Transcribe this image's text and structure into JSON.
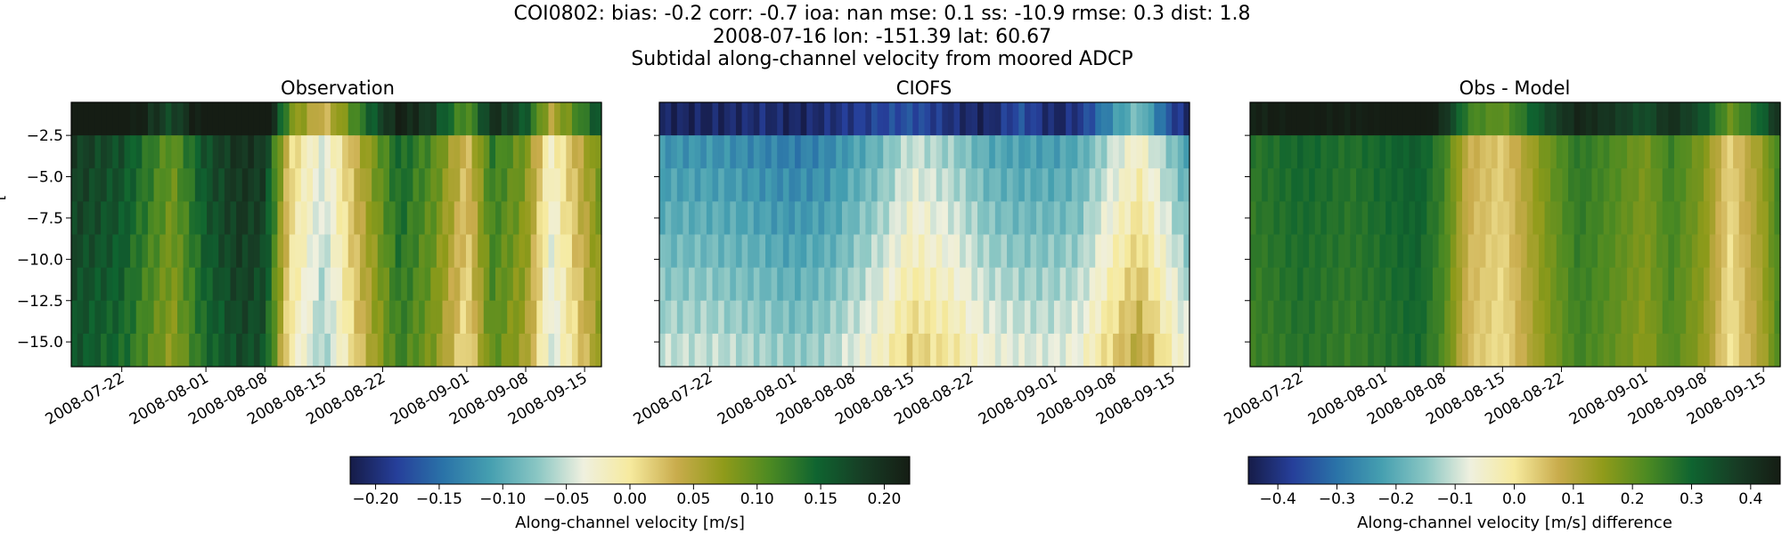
{
  "figure": {
    "title_lines": [
      "COI0802: bias: -0.2  corr: -0.7  ioa: nan  mse: 0.1  ss: -10.9  rmse: 0.3  dist: 1.8",
      "2008-07-16 lon: -151.39 lat: 60.67",
      "Subtidal along-channel velocity from moored ADCP"
    ],
    "background": "#ffffff"
  },
  "chart_data": [
    {
      "type": "heatmap",
      "title": "Observation",
      "colormap": "delta (blue-white-yellow-green)",
      "x_range": [
        "2008-07-16",
        "2008-09-17"
      ],
      "y_range": [
        -16.5,
        -0.5
      ],
      "x_tick_labels": [
        "2008-07-22",
        "2008-08-01",
        "2008-08-08",
        "2008-08-15",
        "2008-08-22",
        "2008-09-01",
        "2008-09-08",
        "2008-09-15"
      ],
      "y_ticks": [
        -2.5,
        -5.0,
        -7.5,
        -10.0,
        -12.5,
        -15.0
      ],
      "y_tick_labels": [
        "−2.5",
        "−5.0",
        "−7.5",
        "−10.0",
        "−12.5",
        "−15.0"
      ],
      "ylabel_visible": "[",
      "depth_levels": [
        -1.5,
        -3.5,
        -5.5,
        -7.5,
        -9.5,
        -11.5,
        -13.5,
        -15.5
      ],
      "color_range": [
        -0.22,
        0.22
      ],
      "time_dates": [
        "2008-07-16",
        "2008-07-22",
        "2008-07-28",
        "2008-08-01",
        "2008-08-05",
        "2008-08-08",
        "2008-08-11",
        "2008-08-15",
        "2008-08-20",
        "2008-08-24",
        "2008-08-28",
        "2008-09-01",
        "2008-09-04",
        "2008-09-08",
        "2008-09-11",
        "2008-09-15",
        "2008-09-17"
      ],
      "profile": [
        0.19,
        0.17,
        0.1,
        0.17,
        0.2,
        0.19,
        0.02,
        -0.04,
        0.07,
        0.15,
        0.11,
        0.03,
        0.13,
        0.09,
        -0.02,
        0.06,
        0.1
      ],
      "surface_offset": 0.07
    },
    {
      "type": "heatmap",
      "title": "CIOFS",
      "colormap": "delta (blue-white-yellow-green)",
      "x_range": [
        "2008-07-16",
        "2008-09-17"
      ],
      "y_range": [
        -16.5,
        -0.5
      ],
      "x_tick_labels": [
        "2008-07-22",
        "2008-08-01",
        "2008-08-08",
        "2008-08-15",
        "2008-08-22",
        "2008-09-01",
        "2008-09-08",
        "2008-09-15"
      ],
      "y_ticks": [
        -2.5,
        -5.0,
        -7.5,
        -10.0,
        -12.5,
        -15.0
      ],
      "depth_levels": [
        -1.5,
        -3.5,
        -5.5,
        -7.5,
        -9.5,
        -11.5,
        -13.5,
        -15.5
      ],
      "color_range": [
        -0.22,
        0.22
      ],
      "time_dates": [
        "2008-07-16",
        "2008-07-22",
        "2008-07-28",
        "2008-08-01",
        "2008-08-05",
        "2008-08-08",
        "2008-08-11",
        "2008-08-15",
        "2008-08-20",
        "2008-08-24",
        "2008-08-28",
        "2008-09-01",
        "2008-09-04",
        "2008-09-08",
        "2008-09-11",
        "2008-09-15",
        "2008-09-17"
      ],
      "surface_row": [
        -0.21,
        -0.21,
        -0.2,
        -0.21,
        -0.2,
        -0.19,
        -0.18,
        -0.17,
        -0.2,
        -0.21,
        -0.17,
        -0.21,
        -0.19,
        -0.12,
        -0.08,
        -0.18,
        -0.21
      ],
      "subsurface_profile": [
        -0.13,
        -0.13,
        -0.14,
        -0.15,
        -0.14,
        -0.12,
        -0.1,
        -0.06,
        -0.08,
        -0.11,
        -0.12,
        -0.12,
        -0.11,
        -0.06,
        -0.03,
        -0.09,
        -0.12
      ],
      "depth_increment": 0.011
    },
    {
      "type": "heatmap",
      "title": "Obs - Model",
      "colormap": "delta (blue-white-yellow-green)",
      "x_range": [
        "2008-07-16",
        "2008-09-17"
      ],
      "y_range": [
        -16.5,
        -0.5
      ],
      "x_tick_labels": [
        "2008-07-22",
        "2008-08-01",
        "2008-08-08",
        "2008-08-15",
        "2008-08-22",
        "2008-09-01",
        "2008-09-08",
        "2008-09-15"
      ],
      "y_ticks": [
        -2.5,
        -5.0,
        -7.5,
        -10.0,
        -12.5,
        -15.0
      ],
      "depth_levels": [
        -1.5,
        -3.5,
        -5.5,
        -7.5,
        -9.5,
        -11.5,
        -13.5,
        -15.5
      ],
      "color_range": [
        -0.45,
        0.45
      ],
      "time_dates": [
        "2008-07-16",
        "2008-07-22",
        "2008-07-28",
        "2008-08-01",
        "2008-08-05",
        "2008-08-08",
        "2008-08-11",
        "2008-08-15",
        "2008-08-20",
        "2008-08-24",
        "2008-08-28",
        "2008-09-01",
        "2008-09-04",
        "2008-09-08",
        "2008-09-11",
        "2008-09-15",
        "2008-09-17"
      ],
      "profile": [
        0.27,
        0.3,
        0.28,
        0.3,
        0.32,
        0.25,
        0.08,
        0.04,
        0.18,
        0.27,
        0.23,
        0.18,
        0.25,
        0.17,
        0.03,
        0.15,
        0.26
      ],
      "surface_offset": 0.16
    }
  ],
  "colorbars": [
    {
      "label": "Along-channel velocity [m/s]",
      "range": [
        -0.22,
        0.22
      ],
      "ticks": [
        -0.2,
        -0.15,
        -0.1,
        -0.05,
        0.0,
        0.05,
        0.1,
        0.15,
        0.2
      ],
      "tick_labels": [
        "−0.20",
        "−0.15",
        "−0.10",
        "−0.05",
        "0.00",
        "0.05",
        "0.10",
        "0.15",
        "0.20"
      ]
    },
    {
      "label": "Along-channel velocity [m/s] difference",
      "range": [
        -0.45,
        0.45
      ],
      "ticks": [
        -0.4,
        -0.3,
        -0.2,
        -0.1,
        0.0,
        0.1,
        0.2,
        0.3,
        0.4
      ],
      "tick_labels": [
        "−0.4",
        "−0.3",
        "−0.2",
        "−0.1",
        "0.0",
        "0.1",
        "0.2",
        "0.3",
        "0.4"
      ]
    }
  ],
  "colormap_colors": [
    "#161c48",
    "#263f9a",
    "#2a73a8",
    "#459fb0",
    "#89c6c3",
    "#eff0df",
    "#f6ea9e",
    "#c9ac4c",
    "#909b1a",
    "#4c8a22",
    "#0f6430",
    "#173d25",
    "#151d14"
  ]
}
